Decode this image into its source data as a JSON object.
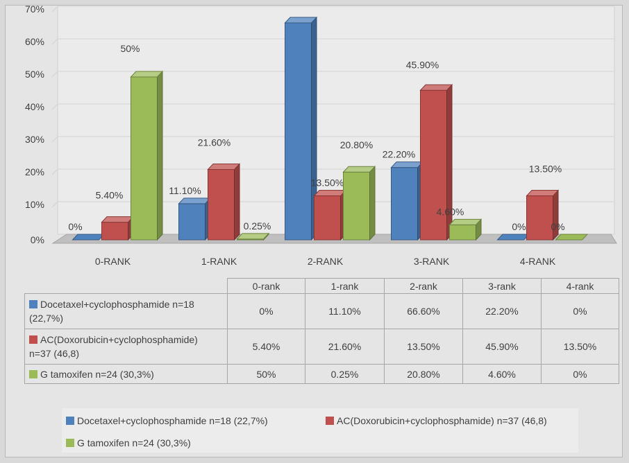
{
  "chart_data": {
    "type": "bar",
    "categories": [
      "0-RANK",
      "1-RANK",
      "2-RANK",
      "3-RANK",
      "4-RANK"
    ],
    "table_headers": [
      "0-rank",
      "1-rank",
      "2-rank",
      "3-rank",
      "4-rank"
    ],
    "ylim": [
      0,
      70
    ],
    "yticks": [
      "0%",
      "10%",
      "20%",
      "30%",
      "40%",
      "50%",
      "60%",
      "70%"
    ],
    "grid": true,
    "legend_position": "bottom",
    "series": [
      {
        "name": "Docetaxel+cyclophosphamide n=18 (22,7%)",
        "table_name": [
          "Docetaxel+cyclophosphamide n=18",
          "(22,7%)"
        ],
        "color": "#4f81bd",
        "values": [
          0,
          11.1,
          66.6,
          22.2,
          0
        ],
        "labels": [
          "0%",
          "11.10%",
          "66.60%",
          "22.20%",
          "0%"
        ]
      },
      {
        "name": "AC(Doxorubicin+cyclophosphamide) n=37 (46,8)",
        "table_name": [
          "AC(Doxorubicin+cyclophosphamide)",
          "n=37 (46,8)"
        ],
        "color": "#c0504d",
        "values": [
          5.4,
          21.6,
          13.5,
          45.9,
          13.5
        ],
        "labels": [
          "5.40%",
          "21.60%",
          "13.50%",
          "45.90%",
          "13.50%"
        ]
      },
      {
        "name": "G tamoxifen n=24 (30,3%)",
        "table_name": [
          "G tamoxifen n=24 (30,3%)"
        ],
        "color": "#9bbb59",
        "values": [
          50,
          0.25,
          20.8,
          4.6,
          0
        ],
        "labels": [
          "50%",
          "0.25%",
          "20.80%",
          "4.60%",
          "0%"
        ]
      }
    ]
  }
}
